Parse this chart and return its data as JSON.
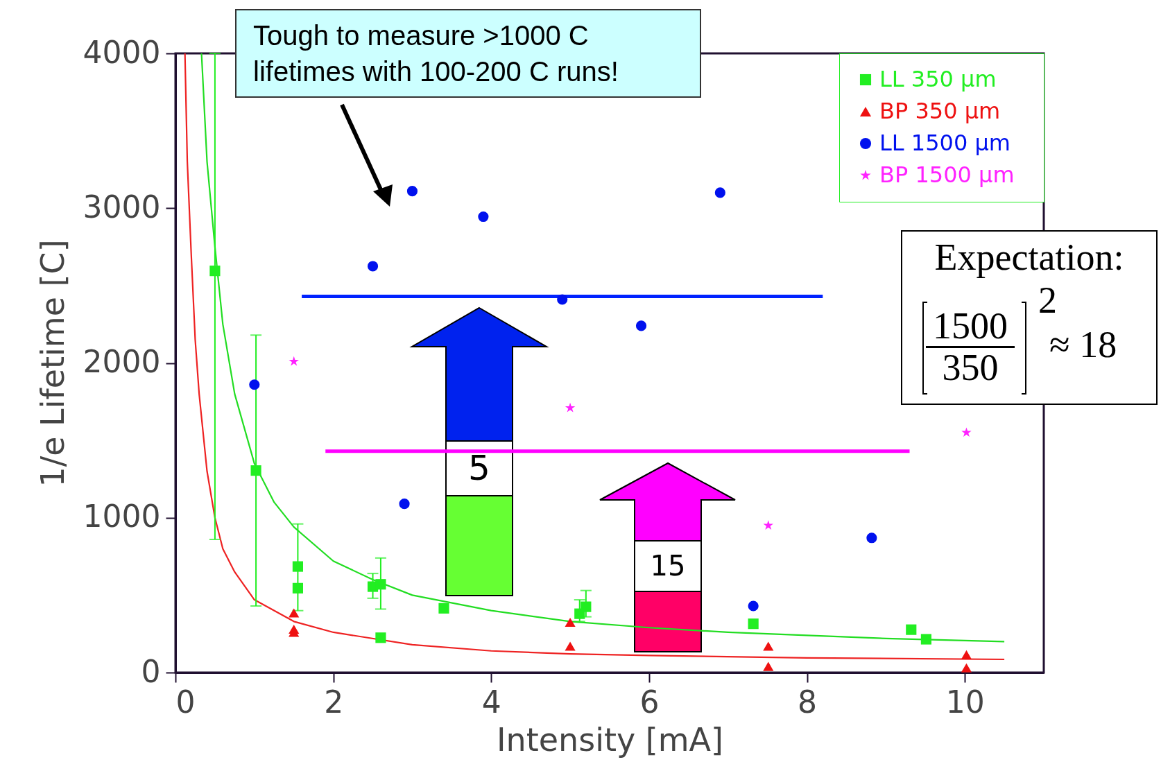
{
  "chart_data": {
    "type": "scatter",
    "xlabel": "Intensity  [mA]",
    "ylabel": "1/e Lifetime  [C]",
    "xlim": [
      0,
      11
    ],
    "xticks": [
      0,
      2,
      4,
      6,
      8,
      10
    ],
    "ylim": [
      0,
      4000
    ],
    "yticks": [
      0,
      1000,
      2000,
      3000,
      4000
    ],
    "legend": "top right",
    "grid": false,
    "series": [
      {
        "type": "line",
        "color": "#22dd22",
        "x": [
          0.33,
          0.4,
          0.5,
          0.6,
          0.75,
          1.0,
          1.25,
          1.5,
          2,
          2.5,
          3,
          4,
          5,
          6,
          7,
          8,
          9,
          10.5
        ],
        "values": [
          4000,
          3300,
          2750,
          2250,
          1800,
          1350,
          1100,
          940,
          720,
          600,
          500,
          400,
          330,
          290,
          260,
          240,
          220,
          200
        ]
      },
      {
        "type": "line",
        "color": "#ee2222",
        "x": [
          0.12,
          0.15,
          0.2,
          0.25,
          0.3,
          0.4,
          0.5,
          0.6,
          0.75,
          1.0,
          1.5,
          2,
          3,
          4,
          5,
          6,
          8,
          10.5
        ],
        "values": [
          4000,
          3300,
          2700,
          2150,
          1800,
          1300,
          1000,
          800,
          650,
          470,
          330,
          260,
          180,
          140,
          120,
          110,
          95,
          85
        ]
      },
      {
        "type": "line",
        "color": "#0022ff",
        "x": [
          1.6,
          8.2
        ],
        "values": [
          2430,
          2430
        ]
      },
      {
        "type": "line",
        "color": "#ff00ff",
        "x": [
          1.9,
          9.3
        ],
        "values": [
          1430,
          1430
        ]
      },
      {
        "name": "LL  350  μm",
        "color": "#22ee22",
        "marker": "square",
        "x": [
          0.5,
          1.02,
          1.55,
          1.55,
          2.5,
          2.6,
          2.6,
          3.4,
          5.12,
          5.2,
          7.32,
          9.32,
          9.51
        ],
        "values": [
          2595,
          1305,
          685,
          545,
          555,
          570,
          225,
          415,
          380,
          425,
          315,
          277,
          215
        ],
        "errors": [
          [
            860,
            4000
          ],
          [
            430,
            2180
          ],
          [
            400,
            960
          ],
          null,
          [
            480,
            640
          ],
          [
            410,
            740
          ],
          null,
          null,
          [
            330,
            470
          ],
          [
            360,
            530
          ],
          null,
          null,
          null
        ]
      },
      {
        "name": "BP  350  μm",
        "color": "#ee1111",
        "marker": "triangle",
        "x": [
          1.5,
          1.5,
          1.5,
          5.0,
          5.0,
          7.51,
          7.51,
          10.02,
          10.02
        ],
        "values": [
          385,
          280,
          260,
          325,
          170,
          170,
          40,
          115,
          30
        ]
      },
      {
        "name": "LL  1500  μm",
        "color": "#0011ee",
        "marker": "circle",
        "x": [
          1.0,
          2.5,
          3.0,
          3.9,
          2.9,
          4.9,
          5.9,
          6.9,
          7.32,
          8.82
        ],
        "values": [
          1860,
          2625,
          3110,
          2945,
          1090,
          2410,
          2240,
          3100,
          430,
          870
        ]
      },
      {
        "name": "BP  1500  μm",
        "color": "#ff22ff",
        "marker": "star",
        "x": [
          1.5,
          5.0,
          7.51,
          10.02
        ],
        "values": [
          2010,
          1710,
          950,
          1550
        ]
      }
    ],
    "annotations": [
      "Tough to measure >1000 C lifetimes with 100-200 C runs!",
      "5",
      "15",
      "Expectation:",
      "1500",
      "350",
      "2",
      "≈ 18"
    ]
  }
}
